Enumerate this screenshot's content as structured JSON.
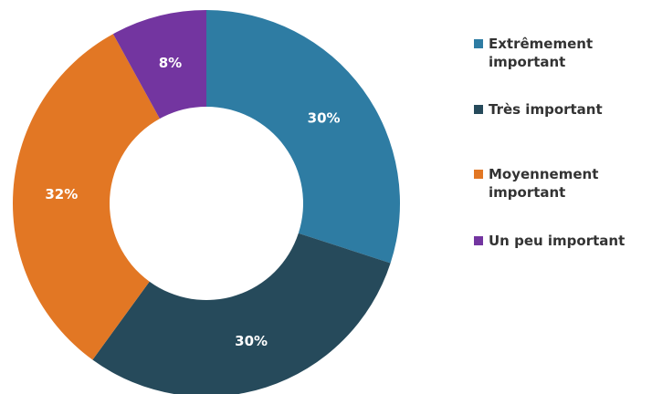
{
  "chart_data": {
    "type": "pie",
    "title": "",
    "categories": [
      "Extrêmement important",
      "Très important",
      "Moyennement important",
      "Un peu important"
    ],
    "values": [
      30,
      30,
      32,
      8
    ],
    "data_labels": [
      "30%",
      "30%",
      "32%",
      "8%"
    ],
    "colors": [
      "#2e7ca3",
      "#264a5b",
      "#e27724",
      "#7335a0"
    ],
    "legend_position": "right",
    "donut": true
  },
  "legend": {
    "items": [
      {
        "label": "Extrêmement important",
        "color": "#2e7ca3"
      },
      {
        "label": "Très important",
        "color": "#264a5b"
      },
      {
        "label": "Moyennement important",
        "color": "#e27724"
      },
      {
        "label": "Un peu important",
        "color": "#7335a0"
      }
    ]
  }
}
